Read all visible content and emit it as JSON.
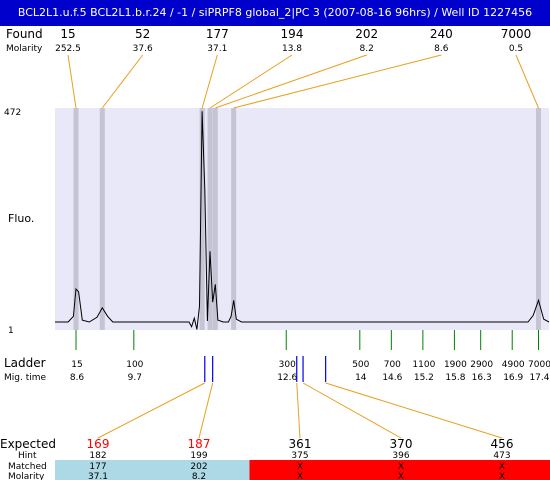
{
  "title": "BCL2L1.u.f.5  BCL2L1.b.r.24 / -1 / siPRPF8 global_2|PC 3 (2007-08-16 96hrs) / Well ID 1227456",
  "labels": {
    "found": "Found",
    "molarity": "Molarity",
    "fluo": "Fluo.",
    "ymax": "472",
    "ymin": "1",
    "ladder": "Ladder",
    "mig_time": "Mig. time",
    "expected": "Expected",
    "hint": "Hint",
    "matched": "Matched",
    "matched_molarity": "Molarity"
  },
  "colors": {
    "title_bg": "#0000cc",
    "plot_bg": "#e8e8f8",
    "band": "#c4c4d4",
    "found_line": "#e8a020",
    "ladder_tick": "#008000",
    "marker_tick": "#0000ee",
    "expected_highlight": "#ff0000",
    "matched_ok": "#add8e6",
    "matched_fail": "#ff0000"
  },
  "chart_data": {
    "type": "line",
    "title": "",
    "ylabel": "Fluo.",
    "ylim": [
      1,
      472
    ],
    "mig_time_range": [
      8.2,
      17.6
    ],
    "found_peaks": [
      {
        "size": "15",
        "molarity": "252.5",
        "mig": 8.6
      },
      {
        "size": "52",
        "molarity": "37.6",
        "mig": 9.1
      },
      {
        "size": "177",
        "molarity": "37.1",
        "mig": 11.0
      },
      {
        "size": "194",
        "molarity": "13.8",
        "mig": 11.15
      },
      {
        "size": "202",
        "molarity": "8.2",
        "mig": 11.25
      },
      {
        "size": "240",
        "molarity": "8.6",
        "mig": 11.6
      },
      {
        "size": "7000",
        "molarity": "0.5",
        "mig": 17.4
      }
    ],
    "trace": [
      [
        8.2,
        18
      ],
      [
        8.45,
        18
      ],
      [
        8.55,
        30
      ],
      [
        8.6,
        88
      ],
      [
        8.65,
        82
      ],
      [
        8.72,
        22
      ],
      [
        8.85,
        18
      ],
      [
        9.0,
        28
      ],
      [
        9.1,
        48
      ],
      [
        9.2,
        30
      ],
      [
        9.3,
        18
      ],
      [
        10.3,
        18
      ],
      [
        10.75,
        18
      ],
      [
        10.8,
        8
      ],
      [
        10.85,
        26
      ],
      [
        10.9,
        2
      ],
      [
        10.95,
        52
      ],
      [
        11.0,
        465
      ],
      [
        11.05,
        300
      ],
      [
        11.1,
        20
      ],
      [
        11.15,
        168
      ],
      [
        11.2,
        60
      ],
      [
        11.25,
        98
      ],
      [
        11.3,
        22
      ],
      [
        11.4,
        18
      ],
      [
        11.5,
        18
      ],
      [
        11.55,
        30
      ],
      [
        11.6,
        64
      ],
      [
        11.65,
        24
      ],
      [
        11.75,
        18
      ],
      [
        17.2,
        18
      ],
      [
        17.3,
        32
      ],
      [
        17.4,
        64
      ],
      [
        17.5,
        24
      ],
      [
        17.6,
        18
      ]
    ],
    "ladder": [
      {
        "size": "15",
        "mig": "8.6"
      },
      {
        "size": "100",
        "mig": "9.7"
      },
      {
        "size": "300",
        "mig": "12.6"
      },
      {
        "size": "500",
        "mig": "14"
      },
      {
        "size": "700",
        "mig": "14.6"
      },
      {
        "size": "1100",
        "mig": "15.2"
      },
      {
        "size": "1900",
        "mig": "15.8"
      },
      {
        "size": "2900",
        "mig": "16.3"
      },
      {
        "size": "4900",
        "mig": "16.9"
      },
      {
        "size": "7000",
        "mig": "17.4"
      }
    ],
    "markers": [
      11.05,
      11.2,
      12.8,
      12.92,
      13.35
    ],
    "expected": [
      {
        "value": "169",
        "highlight": true,
        "marker": 0,
        "hint": "182",
        "matched": "177",
        "molarity": "37.1",
        "ok": true
      },
      {
        "value": "187",
        "highlight": true,
        "marker": 1,
        "hint": "199",
        "matched": "202",
        "molarity": "8.2",
        "ok": true
      },
      {
        "value": "361",
        "highlight": false,
        "marker": 2,
        "hint": "375",
        "matched": "X",
        "molarity": "X",
        "ok": false
      },
      {
        "value": "370",
        "highlight": false,
        "marker": 3,
        "hint": "396",
        "matched": "X",
        "molarity": "X",
        "ok": false
      },
      {
        "value": "456",
        "highlight": false,
        "marker": 4,
        "hint": "473",
        "matched": "X",
        "molarity": "X",
        "ok": false
      }
    ]
  }
}
